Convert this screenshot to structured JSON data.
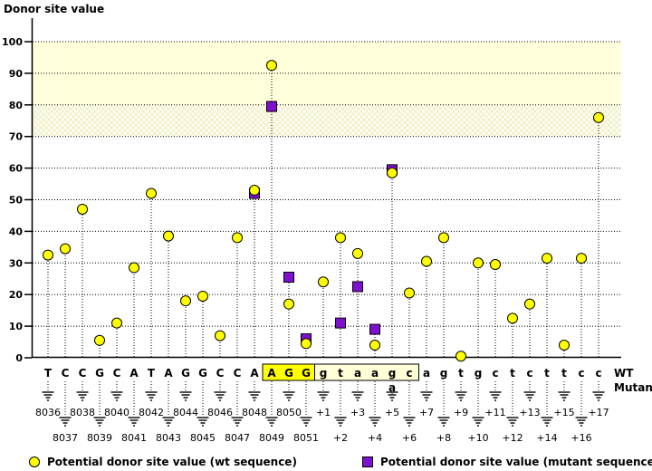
{
  "title": "Donor site value",
  "right_labels": {
    "wt": "WT",
    "mutant": "Mutant"
  },
  "legend": [
    {
      "marker": "circle",
      "label": "Potential donor site value (wt sequence)"
    },
    {
      "marker": "square",
      "label": "Potential donor site value (mutant sequence)"
    }
  ],
  "colors": {
    "wt_point": "#FFFF00",
    "mutant_point": "#8010D0",
    "band_solid": "#FFFFDC",
    "hatch_line": "#F0EFBE",
    "box_highlight": "#FFFF00",
    "box_cream": "#FFFFD8",
    "mutant_text": "#0000CC",
    "axis": "#000000"
  },
  "chart_data": {
    "type": "scatter",
    "title": "Donor site value",
    "ylabel": "Donor site value",
    "xlabel": "",
    "ylim": [
      0,
      110
    ],
    "y_ticks": [
      0,
      10,
      20,
      30,
      40,
      50,
      60,
      70,
      80,
      90,
      100
    ],
    "grid": "dotted horizontal gridlines, dotted vertical stems",
    "legend_position": "bottom",
    "bands": [
      {
        "from": 80,
        "to": 100,
        "style": "solid"
      },
      {
        "from": 70,
        "to": 80,
        "style": "crosshatch"
      }
    ],
    "series": [
      {
        "name": "Potential donor site value (wt sequence)",
        "marker": "circle",
        "color": "#FFFF00"
      },
      {
        "name": "Potential donor site value (mutant sequence)",
        "marker": "square",
        "color": "#8010D0"
      }
    ],
    "positions": [
      {
        "base": "T",
        "label": "8036",
        "wt": 32.5,
        "mut": null,
        "box": null
      },
      {
        "base": "C",
        "label": "8037",
        "wt": 34.5,
        "mut": null,
        "box": null
      },
      {
        "base": "C",
        "label": "8038",
        "wt": 47,
        "mut": null,
        "box": null
      },
      {
        "base": "G",
        "label": "8039",
        "wt": 5.5,
        "mut": null,
        "box": null
      },
      {
        "base": "C",
        "label": "8040",
        "wt": 11,
        "mut": null,
        "box": null
      },
      {
        "base": "A",
        "label": "8041",
        "wt": 28.5,
        "mut": null,
        "box": null
      },
      {
        "base": "T",
        "label": "8042",
        "wt": 52,
        "mut": null,
        "box": null
      },
      {
        "base": "A",
        "label": "8043",
        "wt": 38.5,
        "mut": null,
        "box": null
      },
      {
        "base": "G",
        "label": "8044",
        "wt": 18,
        "mut": null,
        "box": null
      },
      {
        "base": "G",
        "label": "8045",
        "wt": 19.5,
        "mut": null,
        "box": null
      },
      {
        "base": "C",
        "label": "8046",
        "wt": 7,
        "mut": null,
        "box": null
      },
      {
        "base": "C",
        "label": "8047",
        "wt": 38,
        "mut": null,
        "box": null
      },
      {
        "base": "A",
        "label": "8048",
        "wt": 53,
        "mut": 52,
        "box": null
      },
      {
        "base": "A",
        "label": "8049",
        "wt": 92.5,
        "mut": 79.5,
        "box": "yellow"
      },
      {
        "base": "G",
        "label": "8050",
        "wt": 17,
        "mut": 25.5,
        "box": "yellow"
      },
      {
        "base": "G",
        "label": "8051",
        "wt": 4.5,
        "mut": 6,
        "box": "yellow"
      },
      {
        "base": "g",
        "label": "+1",
        "wt": 24,
        "mut": null,
        "box": "cream"
      },
      {
        "base": "t",
        "label": "+2",
        "wt": 38,
        "mut": 11,
        "box": "cream"
      },
      {
        "base": "a",
        "label": "+3",
        "wt": 33,
        "mut": 22.5,
        "box": "cream"
      },
      {
        "base": "a",
        "label": "+4",
        "wt": 4,
        "mut": 9,
        "box": "cream"
      },
      {
        "base": "g",
        "label": "+5",
        "wt": 58.5,
        "mut": 59.5,
        "box": "cream",
        "mutant_base": "a"
      },
      {
        "base": "c",
        "label": "+6",
        "wt": 20.5,
        "mut": null,
        "box": "cream"
      },
      {
        "base": "a",
        "label": "+7",
        "wt": 30.5,
        "mut": null,
        "box": null
      },
      {
        "base": "g",
        "label": "+8",
        "wt": 38,
        "mut": null,
        "box": null
      },
      {
        "base": "t",
        "label": "+9",
        "wt": 0.5,
        "mut": null,
        "box": null
      },
      {
        "base": "g",
        "label": "+10",
        "wt": 30,
        "mut": null,
        "box": null
      },
      {
        "base": "c",
        "label": "+11",
        "wt": 29.5,
        "mut": null,
        "box": null
      },
      {
        "base": "t",
        "label": "+12",
        "wt": 12.5,
        "mut": null,
        "box": null
      },
      {
        "base": "c",
        "label": "+13",
        "wt": 17,
        "mut": null,
        "box": null
      },
      {
        "base": "t",
        "label": "+14",
        "wt": 31.5,
        "mut": null,
        "box": null
      },
      {
        "base": "t",
        "label": "+15",
        "wt": 4,
        "mut": null,
        "box": null
      },
      {
        "base": "c",
        "label": "+16",
        "wt": 31.5,
        "mut": null,
        "box": null
      },
      {
        "base": "c",
        "label": "+17",
        "wt": 76,
        "mut": null,
        "box": null
      }
    ]
  }
}
